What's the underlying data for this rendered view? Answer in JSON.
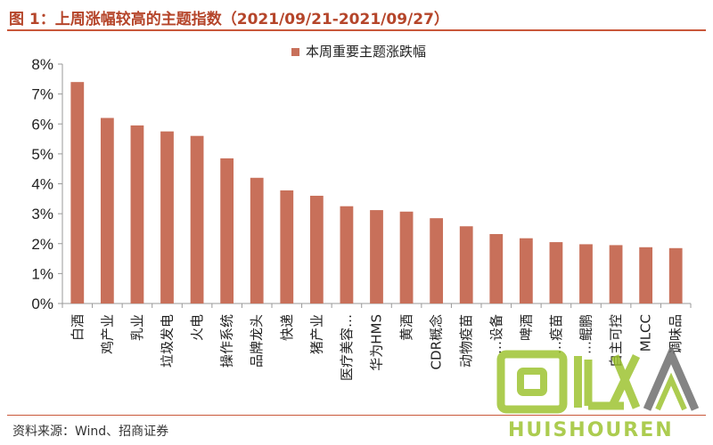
{
  "header": {
    "title": "图 1：上周涨幅较高的主题指数（2021/09/21-2021/09/27）"
  },
  "footer": {
    "source": "资料来源：Wind、招商证券"
  },
  "watermark": {
    "logo_text": "回收",
    "brand": "HUISHOUREN"
  },
  "colors": {
    "bar": "#c8705a",
    "title": "#b5452a",
    "rule": "#c9573a"
  },
  "chart_data": {
    "type": "bar",
    "title": "",
    "xlabel": "",
    "ylabel": "",
    "ylim": [
      0,
      8
    ],
    "y_ticks": [
      "0%",
      "1%",
      "2%",
      "3%",
      "4%",
      "5%",
      "6%",
      "7%",
      "8%"
    ],
    "grid": false,
    "legend_position": "top-center",
    "categories": [
      "白酒",
      "鸡产业",
      "乳业",
      "垃圾发电",
      "火电",
      "操作系统",
      "品牌龙头",
      "快递",
      "猪产业",
      "医疗美容…",
      "华为HMS",
      "黄酒",
      "CDR概念",
      "动物疫苗",
      "…设备",
      "啤酒",
      "…疫苗",
      "…鲲鹏",
      "自主可控",
      "MLCC",
      "调味品"
    ],
    "series": [
      {
        "name": "本周重要主题涨跌幅",
        "values": [
          7.4,
          6.2,
          5.95,
          5.75,
          5.6,
          4.85,
          4.2,
          3.78,
          3.6,
          3.25,
          3.12,
          3.07,
          2.85,
          2.58,
          2.32,
          2.18,
          2.05,
          1.98,
          1.95,
          1.88,
          1.85
        ]
      }
    ]
  }
}
